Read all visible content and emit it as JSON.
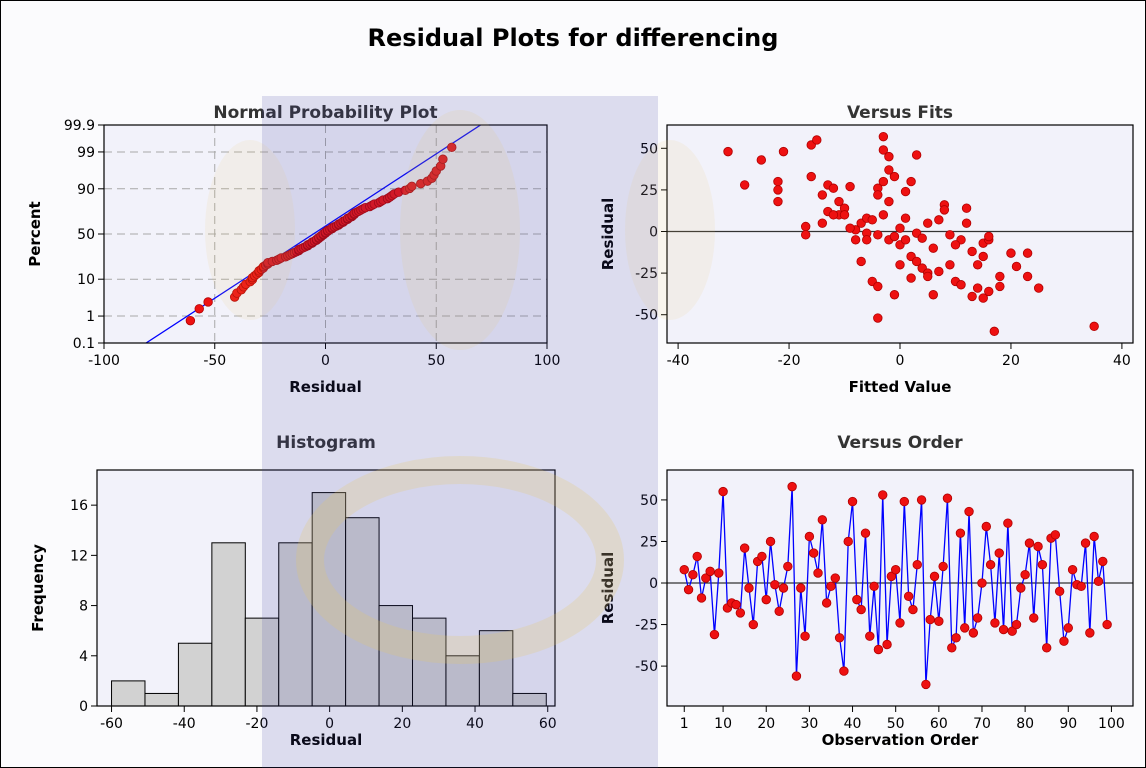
{
  "title": "Residual Plots for differencing",
  "chart_data": [
    {
      "type": "probability",
      "title": "Normal Probability Plot",
      "x_label": "Residual",
      "y_label": "Percent",
      "x": [
        -61,
        -57,
        -53,
        -41,
        -40,
        -38,
        -37,
        -36,
        -34,
        -33,
        -33,
        -32,
        -31,
        -30,
        -30,
        -29,
        -28,
        -28,
        -27,
        -26,
        -26,
        -24,
        -22,
        -21,
        -20,
        -18,
        -17,
        -16,
        -15,
        -14,
        -13,
        -12,
        -12,
        -11,
        -10,
        -9,
        -8,
        -8,
        -7,
        -6,
        -6,
        -5,
        -4,
        -4,
        -3,
        -3,
        -2,
        -2,
        -1,
        -1,
        0,
        0,
        1,
        1,
        2,
        3,
        3,
        4,
        5,
        6,
        6,
        7,
        8,
        8,
        9,
        10,
        10,
        11,
        12,
        12,
        13,
        13,
        14,
        15,
        16,
        17,
        18,
        20,
        21,
        22,
        24,
        25,
        26,
        28,
        29,
        30,
        31,
        33,
        36,
        38,
        39,
        43,
        46,
        48,
        49,
        50,
        52,
        53,
        57
      ],
      "values": [
        0.7,
        1.7,
        2.7,
        3.7,
        4.7,
        5.7,
        6.7,
        7.7,
        8.8,
        9.8,
        10.8,
        11.8,
        12.8,
        13.8,
        14.8,
        15.8,
        16.8,
        17.8,
        18.8,
        19.8,
        20.8,
        21.8,
        22.8,
        23.8,
        24.9,
        25.9,
        26.9,
        27.9,
        28.9,
        29.9,
        30.9,
        31.9,
        32.9,
        33.9,
        34.9,
        35.9,
        36.9,
        37.9,
        38.9,
        39.9,
        40.9,
        42,
        43,
        44,
        45,
        46,
        47,
        48,
        49,
        50,
        51,
        52,
        53,
        54,
        55,
        56,
        57,
        58,
        59.1,
        60.1,
        61.1,
        62.1,
        63.1,
        64.1,
        65.1,
        66.1,
        67.1,
        68.1,
        69.1,
        70.1,
        71.1,
        72.1,
        73.1,
        74.1,
        75.2,
        76.2,
        77.2,
        78.2,
        79.2,
        80.2,
        81.2,
        82.2,
        83.2,
        84.2,
        85.2,
        86.2,
        87.2,
        88.2,
        89.2,
        90.2,
        91.2,
        92.3,
        93.3,
        94.3,
        95.3,
        96.3,
        97.3,
        98.3,
        99.3
      ],
      "color": "#ee1111",
      "fit_line": {
        "x": [
          -81,
          70
        ],
        "values": [
          0.1,
          99.9
        ],
        "color": "#0000ff"
      },
      "xlim": [
        -100,
        100
      ],
      "ylim": [
        0.1,
        99.9
      ],
      "xticks": [
        -100,
        -50,
        0,
        50,
        100
      ],
      "yticks": [
        0.1,
        1,
        10,
        50,
        90,
        99,
        99.9
      ],
      "yscale": "normal-probability",
      "grid": true
    },
    {
      "type": "scatter",
      "title": "Versus Fits",
      "x_label": "Fitted Value",
      "y_label": "Residual",
      "x": [
        -31,
        -28,
        -25,
        -21,
        -22,
        -22,
        -22,
        -16,
        -15,
        -16,
        -17,
        -17,
        -14,
        -13,
        -12,
        -11,
        -11,
        -10,
        -9,
        -13,
        -14,
        -12,
        -10,
        -8,
        -7,
        -6,
        -5,
        -6,
        -4,
        -4,
        -3,
        -3,
        -3,
        -4,
        -5,
        -4,
        -4,
        -2,
        -2,
        -1,
        -2,
        -3,
        -2,
        -1,
        0,
        0,
        1,
        0,
        -1,
        1,
        2,
        3,
        1,
        3,
        4,
        5,
        2,
        3,
        4,
        5,
        6,
        5,
        6,
        7,
        8,
        8,
        9,
        9,
        10,
        11,
        11,
        12,
        12,
        13,
        13,
        14,
        14,
        15,
        15,
        15,
        16,
        16,
        16,
        17,
        18,
        18,
        20,
        21,
        23,
        23,
        25,
        35,
        -6,
        -8,
        7,
        2,
        -9,
        10,
        -7
      ],
      "values": [
        48,
        28,
        43,
        48,
        30,
        25,
        18,
        52,
        55,
        33,
        3,
        -2,
        22,
        28,
        26,
        18,
        10,
        14,
        27,
        12,
        5,
        10,
        10,
        1,
        5,
        8,
        7,
        -1,
        26,
        -2,
        57,
        49,
        30,
        22,
        -30,
        -33,
        -52,
        45,
        37,
        33,
        18,
        10,
        -5,
        -3,
        2,
        -8,
        -5,
        -20,
        -38,
        24,
        30,
        46,
        8,
        -1,
        -4,
        5,
        -15,
        -18,
        -22,
        -25,
        -10,
        -27,
        -38,
        -24,
        16,
        13,
        -2,
        -20,
        -30,
        -5,
        -32,
        14,
        5,
        -12,
        -39,
        -20,
        -34,
        -7,
        -15,
        -40,
        -5,
        -36,
        -3,
        -60,
        -27,
        -33,
        -13,
        -21,
        -13,
        -27,
        -34,
        -57,
        -5,
        -5,
        7,
        -28,
        2,
        -8,
        -18
      ],
      "color": "#ee1111",
      "reference_line": 0,
      "xlim": [
        -42,
        42
      ],
      "ylim": [
        -67,
        64
      ],
      "xticks": [
        -40,
        -20,
        0,
        20,
        40
      ],
      "yticks": [
        -50,
        -25,
        0,
        25,
        50
      ]
    },
    {
      "type": "histogram",
      "title": "Histogram",
      "x_label": "Residual",
      "y_label": "Frequency",
      "bins": [
        -60,
        -50.8,
        -41.6,
        -32.4,
        -23.2,
        -14,
        -4.8,
        4.4,
        13.6,
        22.8,
        32,
        41.2,
        50.4,
        59.6
      ],
      "values": [
        2,
        1,
        5,
        13,
        7,
        13,
        17,
        15,
        8,
        7,
        4,
        6,
        1
      ],
      "color": "#d2d2d2",
      "xlim": [
        -64,
        62
      ],
      "ylim": [
        0,
        18.8
      ],
      "xticks": [
        -60,
        -40,
        -20,
        0,
        20,
        40,
        60
      ],
      "yticks": [
        0,
        4,
        8,
        12,
        16
      ]
    },
    {
      "type": "line",
      "title": "Versus Order",
      "x_label": "Observation Order",
      "y_label": "Residual",
      "x": [
        1,
        2,
        3,
        4,
        5,
        6,
        7,
        8,
        9,
        10,
        11,
        12,
        13,
        14,
        15,
        16,
        17,
        18,
        19,
        20,
        21,
        22,
        23,
        24,
        25,
        26,
        27,
        28,
        29,
        30,
        31,
        32,
        33,
        34,
        35,
        36,
        37,
        38,
        39,
        40,
        41,
        42,
        43,
        44,
        45,
        46,
        47,
        48,
        49,
        50,
        51,
        52,
        53,
        54,
        55,
        56,
        57,
        58,
        59,
        60,
        61,
        62,
        63,
        64,
        65,
        66,
        67,
        68,
        69,
        70,
        71,
        72,
        73,
        74,
        75,
        76,
        77,
        78,
        79,
        80,
        81,
        82,
        83,
        84,
        85,
        86,
        87,
        88,
        89,
        90,
        91,
        92,
        93,
        94,
        95,
        96,
        97,
        98,
        99
      ],
      "values": [
        8,
        -4,
        5,
        16,
        -9,
        3,
        7,
        -31,
        6,
        55,
        -15,
        -12,
        -13,
        -18,
        21,
        -3,
        -25,
        13,
        16,
        -10,
        25,
        -1,
        -17,
        -3,
        10,
        58,
        -56,
        -3,
        -32,
        28,
        18,
        6,
        38,
        -12,
        -2,
        3,
        -33,
        -53,
        25,
        49,
        -10,
        -16,
        30,
        -32,
        -2,
        -40,
        53,
        -37,
        4,
        8,
        -24,
        49,
        -8,
        -16,
        11,
        50,
        -61,
        -22,
        4,
        -23,
        10,
        51,
        -39,
        -33,
        30,
        -27,
        43,
        -30,
        -21,
        0,
        34,
        11,
        -24,
        18,
        -28,
        36,
        -29,
        -25,
        -3,
        5,
        24,
        -21,
        22,
        11,
        -39,
        27,
        29,
        -5,
        -35,
        -27,
        8,
        -1,
        -2,
        24,
        -30,
        28,
        1,
        13,
        -25
      ],
      "color": "#ee1111",
      "line_color": "#0000ff",
      "reference_line": 0,
      "xlim": [
        -3,
        105
      ],
      "ylim": [
        -74,
        68
      ],
      "xticks": [
        1,
        10,
        20,
        30,
        40,
        50,
        60,
        70,
        80,
        90,
        100
      ],
      "yticks": [
        -50,
        -25,
        0,
        25,
        50
      ]
    }
  ]
}
